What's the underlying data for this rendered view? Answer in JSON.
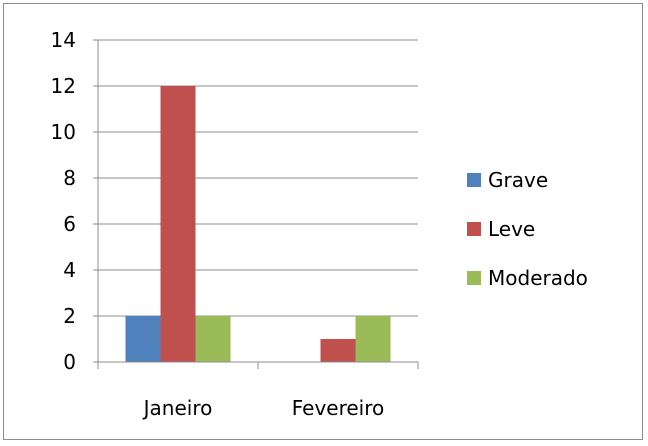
{
  "chart_data": {
    "type": "bar",
    "categories": [
      "Janeiro",
      "Fevereiro"
    ],
    "series": [
      {
        "name": "Grave",
        "values": [
          2,
          0
        ],
        "color": "#4f81bd"
      },
      {
        "name": "Leve",
        "values": [
          12,
          1
        ],
        "color": "#c0504d"
      },
      {
        "name": "Moderado",
        "values": [
          2,
          2
        ],
        "color": "#9bbb59"
      }
    ],
    "ylim": [
      0,
      14
    ],
    "yticks": [
      0,
      2,
      4,
      6,
      8,
      10,
      12,
      14
    ],
    "grid": true,
    "legend_position": "right",
    "gridline_color": "#8c8c8c",
    "axis_color": "#8c8c8c"
  }
}
